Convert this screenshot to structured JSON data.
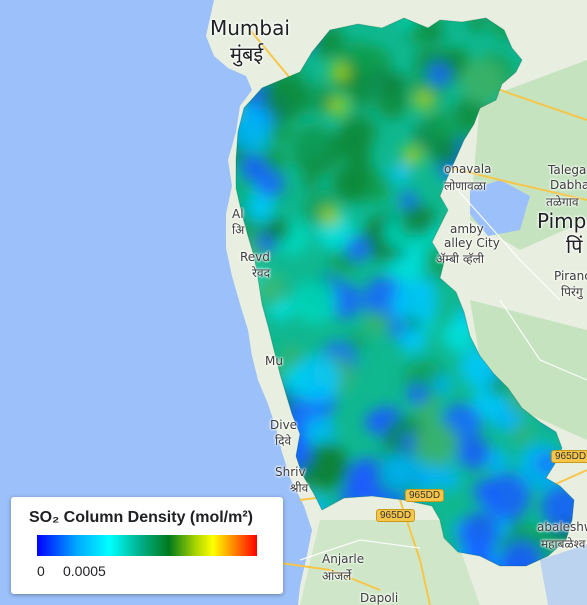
{
  "map": {
    "place_labels": [
      {
        "id": "mumbai",
        "text": "Mumbai"
      },
      {
        "id": "mumbai-dev",
        "text": "मुंबई"
      },
      {
        "id": "lonavala",
        "text": "onavala"
      },
      {
        "id": "lonavala-dev",
        "text": "लोणावळा"
      },
      {
        "id": "talegaon",
        "text": "Talega"
      },
      {
        "id": "dabhade",
        "text": "Dabha"
      },
      {
        "id": "talegaon-dev",
        "text": "तळेगाव"
      },
      {
        "id": "pimpri",
        "text": "Pimp"
      },
      {
        "id": "pimpri-dev",
        "text": "पिं"
      },
      {
        "id": "amby",
        "text": "amby"
      },
      {
        "id": "valley-city",
        "text": "alley City"
      },
      {
        "id": "valley-dev",
        "text": "ॲम्बी व्हॅली"
      },
      {
        "id": "pirangut",
        "text": "Piranc"
      },
      {
        "id": "pirangut-dev",
        "text": "पिरंगु"
      },
      {
        "id": "alibag",
        "text": "Al"
      },
      {
        "id": "alibag-dev",
        "text": "अि"
      },
      {
        "id": "revdanda",
        "text": "Revd"
      },
      {
        "id": "revdanda-dev",
        "text": "रेवद"
      },
      {
        "id": "murud",
        "text": "Mu"
      },
      {
        "id": "dive",
        "text": "Dive"
      },
      {
        "id": "dive-dev",
        "text": "दिवे"
      },
      {
        "id": "shriv",
        "text": "Shriv"
      },
      {
        "id": "shriv-dev",
        "text": "श्रीव"
      },
      {
        "id": "mahabaleshwar",
        "text": "abaleshw"
      },
      {
        "id": "mahabaleshwar-dev",
        "text": "महाबळेश्व"
      },
      {
        "id": "anjarle",
        "text": "Anjarle"
      },
      {
        "id": "anjarle-dev",
        "text": "आंजर्ले"
      },
      {
        "id": "dapoli",
        "text": "Dapoli"
      }
    ],
    "road_badges": [
      "965DD",
      "965DD",
      "965DD"
    ],
    "colors": {
      "sea": "#9cc0f9",
      "land": "#e9efe0",
      "land_green": "#c6e3c0",
      "road": "#f6c64a"
    }
  },
  "legend": {
    "title": "SO₂ Column Density (mol/m²)",
    "min_label": "0",
    "max_label": "0.0005",
    "palette": [
      "#0000ff",
      "#00a8ff",
      "#00ffff",
      "#00b08a",
      "#007a1c",
      "#a8d400",
      "#ffff00",
      "#ff8000",
      "#ff0000"
    ]
  }
}
